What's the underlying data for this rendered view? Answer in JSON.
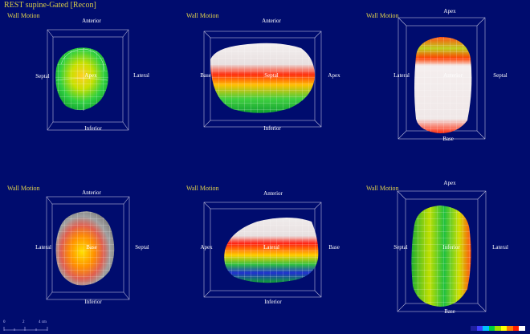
{
  "window": {
    "title": "REST supine-Gated [Recon]"
  },
  "panels": [
    {
      "label": "Wall Motion",
      "dirs": {
        "top": "Anterior",
        "bottom": "Inferior",
        "left": "Septal",
        "right": "Lateral",
        "center": "Apex"
      }
    },
    {
      "label": "Wall Motion",
      "dirs": {
        "top": "Anterior",
        "bottom": "Inferior",
        "left": "Base",
        "right": "Apex",
        "center": "Septal"
      }
    },
    {
      "label": "Wall Motion",
      "dirs": {
        "top": "Apex",
        "bottom": "Base",
        "left": "Lateral",
        "right": "Septal",
        "center": "Anterior"
      }
    },
    {
      "label": "Wall Motion",
      "dirs": {
        "top": "Anterior",
        "bottom": "Inferior",
        "left": "Lateral",
        "right": "Septal",
        "center": "Base"
      }
    },
    {
      "label": "Wall Motion",
      "dirs": {
        "top": "Anterior",
        "bottom": "Inferior",
        "left": "Apex",
        "right": "Base",
        "center": "Lateral"
      }
    },
    {
      "label": "Wall Motion",
      "dirs": {
        "top": "Apex",
        "bottom": "Base",
        "left": "Septal",
        "right": "Lateral",
        "center": "Inferior"
      }
    }
  ],
  "scale_bar": {
    "ticks": [
      "0",
      "2",
      "4 cm"
    ]
  },
  "colors": {
    "background": "#000c6e",
    "label": "#e0d24c",
    "colorbar": [
      "#2020a0",
      "#4040ff",
      "#00c0ff",
      "#00d040",
      "#a0e000",
      "#ffff00",
      "#ff8000",
      "#ff2000",
      "#ffffff"
    ]
  }
}
